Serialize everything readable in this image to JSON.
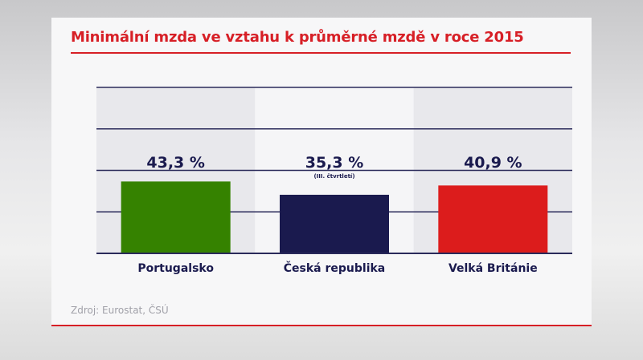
{
  "title": "Minimální mzda ve vztahu k průměrné mzdě v roce 2015",
  "source": "Zdroj: Eurostat, ČSÚ",
  "chart_data": {
    "type": "bar",
    "title": "Minimální mzda ve vztahu k průměrné mzdě v roce 2015",
    "categories": [
      "Portugalsko",
      "Česká republika",
      "Velká Británie"
    ],
    "values": [
      43.3,
      35.3,
      40.9
    ],
    "value_labels": [
      "43,3 %",
      "35,3 %",
      "40,9 %"
    ],
    "annotations": [
      "",
      "(III. čtvrtletí)",
      ""
    ],
    "colors": [
      "#358200",
      "#1a1a4e",
      "#dc1c1c"
    ],
    "ylim": [
      0,
      100
    ],
    "gridlines": [
      0,
      25,
      50,
      75,
      100
    ],
    "grid": true,
    "y_tick_labels_shown": false
  }
}
